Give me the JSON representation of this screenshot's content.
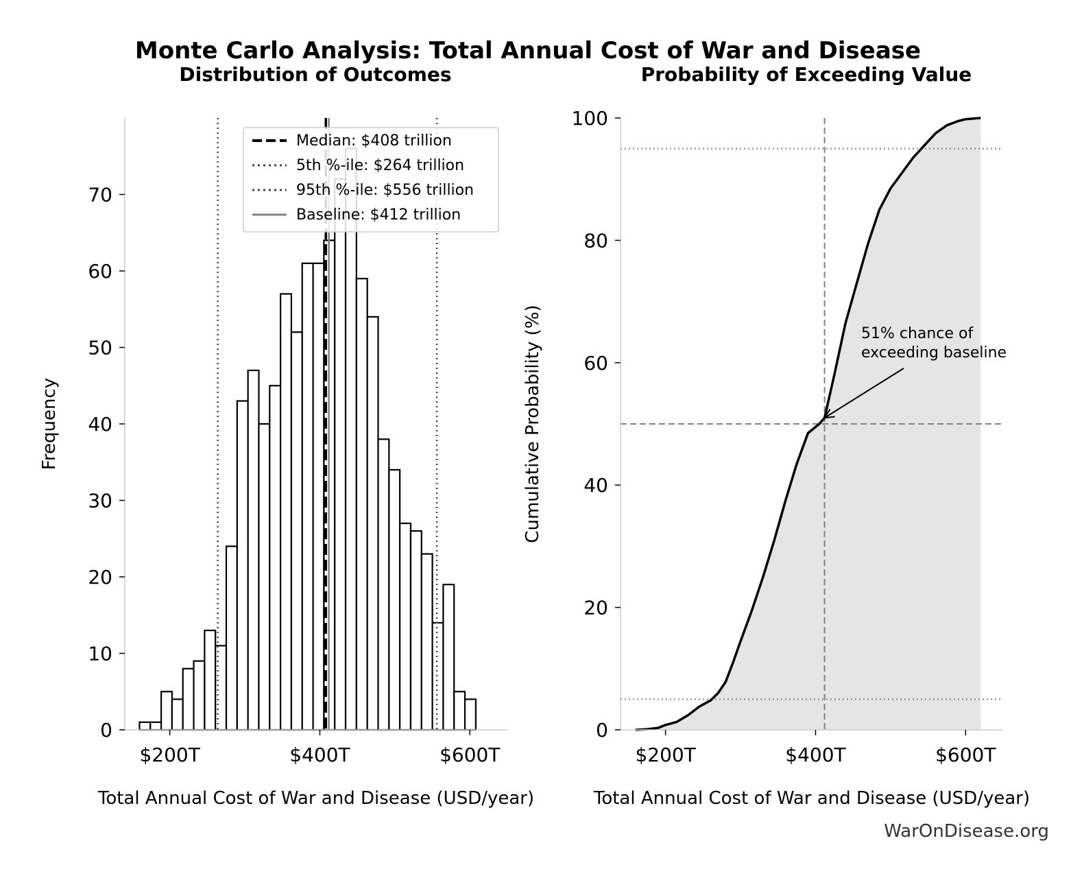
{
  "figure": {
    "title": "Monte Carlo Analysis: Total Annual Cost of War and Disease",
    "credit": "WarOnDisease.org"
  },
  "chart_data": [
    {
      "type": "histogram",
      "title": "Distribution of Outcomes",
      "xlabel": "Total Annual Cost of War and Disease (USD/year)",
      "ylabel": "Frequency",
      "xlim": [
        140,
        650
      ],
      "ylim": [
        0,
        80
      ],
      "xticks": [
        200,
        400,
        600
      ],
      "xtick_labels": [
        "$200T",
        "$400T",
        "$600T"
      ],
      "yticks": [
        0,
        10,
        20,
        30,
        40,
        50,
        60,
        70
      ],
      "ytick_labels": [
        "0",
        "10",
        "20",
        "30",
        "40",
        "50",
        "60",
        "70"
      ],
      "bin_start": 159.6,
      "bin_width": 14.46,
      "counts": [
        1,
        1,
        5,
        4,
        8,
        9,
        13,
        11,
        24,
        43,
        47,
        40,
        45,
        57,
        52,
        61,
        61,
        64,
        72,
        76,
        59,
        54,
        38,
        34,
        27,
        26,
        23,
        14,
        19,
        5,
        4
      ],
      "bar_fill": "#ffffff",
      "bar_edge": "#000000",
      "median": 408,
      "p5": 264,
      "p95": 556,
      "baseline": 412,
      "legend": {
        "position": "upper center",
        "items": [
          {
            "label": "Median: $408 trillion",
            "style": "dashed",
            "color": "#000000"
          },
          {
            "label": "5th %-ile: $264 trillion",
            "style": "dotted",
            "color": "#444444"
          },
          {
            "label": "95th %-ile: $556 trillion",
            "style": "dotted",
            "color": "#444444"
          },
          {
            "label": "Baseline: $412 trillion",
            "style": "solid",
            "color": "#808080"
          }
        ]
      }
    },
    {
      "type": "area",
      "title": "Probability of Exceeding Value",
      "xlabel": "Total Annual Cost of War and Disease (USD/year)",
      "ylabel": "Cumulative Probability (%)",
      "xlim": [
        140,
        650
      ],
      "ylim": [
        0,
        100
      ],
      "xticks": [
        200,
        400,
        600
      ],
      "xtick_labels": [
        "$200T",
        "$400T",
        "$600T"
      ],
      "yticks": [
        0,
        20,
        40,
        60,
        80,
        100
      ],
      "ytick_labels": [
        "0",
        "20",
        "40",
        "60",
        "80",
        "100"
      ],
      "x": [
        160,
        175,
        190,
        200,
        215,
        230,
        245,
        260,
        270,
        280,
        290,
        300,
        315,
        330,
        345,
        360,
        375,
        390,
        405,
        412,
        425,
        440,
        455,
        470,
        485,
        500,
        515,
        530,
        545,
        560,
        575,
        590,
        600,
        620
      ],
      "y": [
        0,
        0.1,
        0.3,
        0.8,
        1.3,
        2.4,
        3.8,
        4.8,
        6.0,
        7.8,
        11.0,
        14.5,
        19.5,
        25.0,
        31.0,
        37.5,
        43.5,
        48.5,
        50.0,
        51.0,
        58.0,
        66.5,
        73.0,
        79.5,
        85.0,
        88.5,
        91.0,
        93.5,
        95.5,
        97.5,
        98.8,
        99.5,
        99.8,
        100
      ],
      "fill_color": "#e5e5e5",
      "line_color": "#000000",
      "baseline": 412,
      "hlines": [
        5,
        50,
        95
      ],
      "annotation": {
        "lines": [
          "51% chance of",
          "exceeding baseline"
        ],
        "x": 412,
        "y": 51
      }
    }
  ]
}
